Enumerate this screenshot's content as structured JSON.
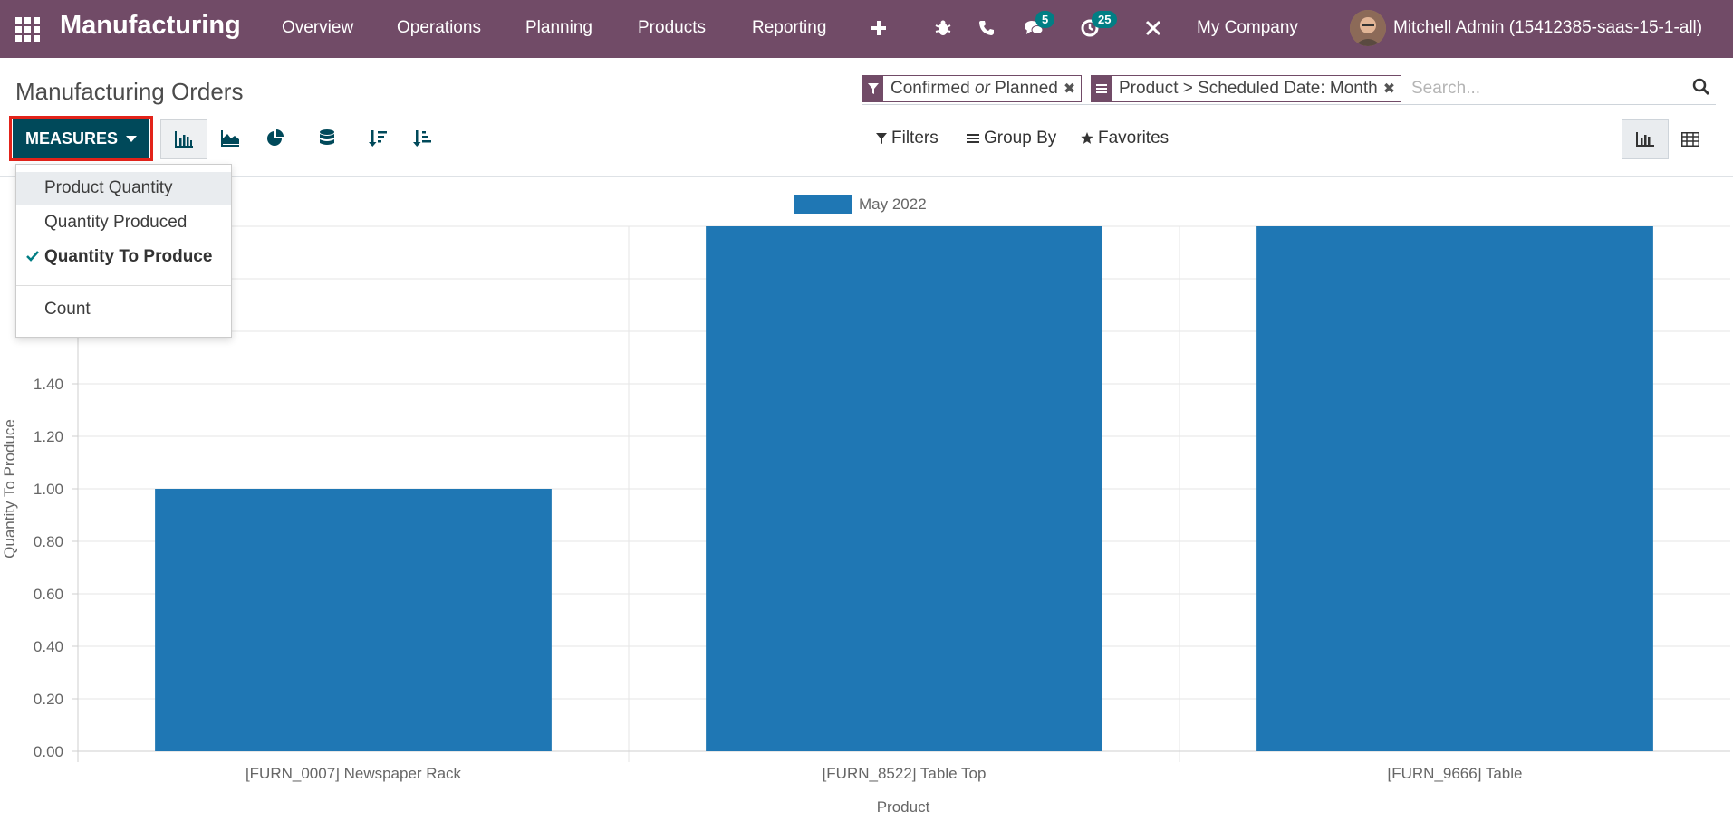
{
  "topbar": {
    "app_name": "Manufacturing",
    "menu": [
      "Overview",
      "Operations",
      "Planning",
      "Products",
      "Reporting"
    ],
    "messages_count": "5",
    "activities_count": "25",
    "company": "My Company",
    "user": "Mitchell Admin (15412385-saas-15-1-all)",
    "color": "#714B67"
  },
  "control_panel": {
    "title": "Manufacturing Orders",
    "facets": [
      {
        "icon": "filter-icon",
        "label_a": "Confirmed",
        "label_or": "or",
        "label_b": "Planned"
      },
      {
        "icon": "group-by-icon",
        "label": "Product > Scheduled Date: Month"
      }
    ],
    "search_placeholder": "Search...",
    "measures_label": "MEASURES",
    "filters_label": "Filters",
    "group_by_label": "Group By",
    "favorites_label": "Favorites"
  },
  "measures_dropdown": {
    "items": [
      {
        "label": "Product Quantity",
        "checked": false
      },
      {
        "label": "Quantity Produced",
        "checked": false
      },
      {
        "label": "Quantity To Produce",
        "checked": true
      },
      {
        "label": "Count",
        "checked": false
      }
    ]
  },
  "chart_data": {
    "type": "bar",
    "categories": [
      "[FURN_0007] Newspaper Rack",
      "[FURN_8522] Table Top",
      "[FURN_9666] Table"
    ],
    "series": [
      {
        "name": "May 2022",
        "values": [
          1,
          2,
          2
        ],
        "color": "#1f77b4"
      }
    ],
    "xlabel": "Product",
    "ylabel": "Quantity To Produce",
    "ylim": [
      0,
      2
    ],
    "yticks": [
      "0.00",
      "0.20",
      "0.40",
      "0.60",
      "0.80",
      "1.00",
      "1.20",
      "1.40"
    ],
    "grid": true,
    "legend": "top-center"
  }
}
